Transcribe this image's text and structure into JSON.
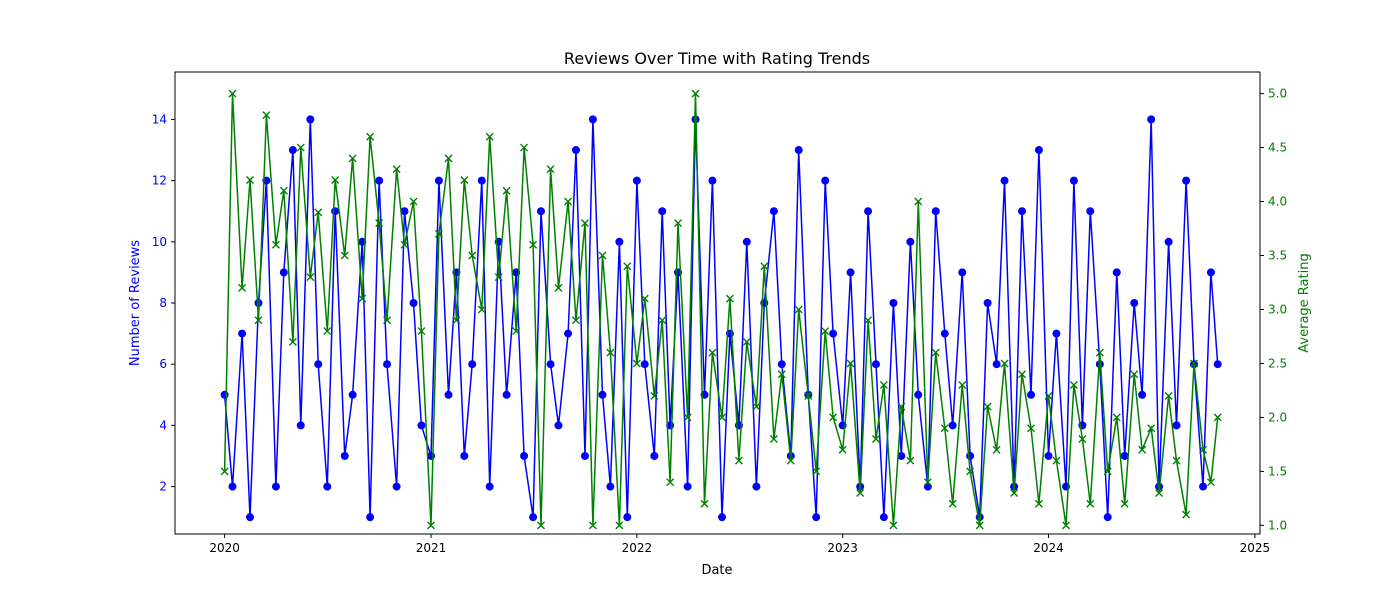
{
  "chart_data": {
    "type": "line",
    "title": "Reviews Over Time with Rating Trends",
    "xlabel": "Date",
    "xlim": [
      "2019-10-05",
      "2025-01-10"
    ],
    "xticks": [
      "2020",
      "2021",
      "2022",
      "2023",
      "2024",
      "2025"
    ],
    "x_range_of_data": [
      "2020-01-01",
      "2024-10-27"
    ],
    "y_left": {
      "label": "Number of Reviews",
      "ylim": [
        0.45,
        15.55
      ],
      "ticks": [
        "2",
        "4",
        "6",
        "8",
        "10",
        "12",
        "14"
      ],
      "color": "#0000ff"
    },
    "y_right": {
      "label": "Average Rating",
      "ylim": [
        0.92,
        5.2
      ],
      "ticks": [
        "1.0",
        "1.5",
        "2.0",
        "2.5",
        "3.0",
        "3.5",
        "4.0",
        "4.5",
        "5.0"
      ],
      "color": "#008000"
    },
    "series": [
      {
        "axis": "left",
        "marker": "circle",
        "color": "#0000ff",
        "x": [
          "2020-01-01",
          "2020-01-15",
          "2020-02-01",
          "2020-02-15",
          "2020-03-01",
          "2020-03-15",
          "2020-04-01",
          "2020-04-15",
          "2020-05-01",
          "2020-05-15",
          "2020-06-01",
          "2020-06-15",
          "2020-07-01",
          "2020-07-15",
          "2020-08-01",
          "2020-08-15",
          "2020-09-01",
          "2020-09-15",
          "2020-10-01",
          "2020-10-15",
          "2020-11-01",
          "2020-11-15",
          "2020-12-01",
          "2020-12-15",
          "2021-01-01",
          "2021-01-15",
          "2021-02-01",
          "2021-02-15",
          "2021-03-01",
          "2021-03-15",
          "2021-04-01",
          "2021-04-15",
          "2021-05-01",
          "2021-05-15",
          "2021-06-01",
          "2021-06-15",
          "2021-07-01",
          "2021-07-15",
          "2021-08-01",
          "2021-08-15",
          "2021-09-01",
          "2021-09-15",
          "2021-10-01",
          "2021-10-15",
          "2021-11-01",
          "2021-11-15",
          "2021-12-01",
          "2021-12-15",
          "2022-01-01",
          "2022-01-15",
          "2022-02-01",
          "2022-02-15",
          "2022-03-01",
          "2022-03-15",
          "2022-04-01",
          "2022-04-15",
          "2022-05-01",
          "2022-05-15",
          "2022-06-01",
          "2022-06-15",
          "2022-07-01",
          "2022-07-15",
          "2022-08-01",
          "2022-08-15",
          "2022-09-01",
          "2022-09-15",
          "2022-10-01",
          "2022-10-15",
          "2022-11-01",
          "2022-11-15",
          "2022-12-01",
          "2022-12-15",
          "2023-01-01",
          "2023-01-15",
          "2023-02-01",
          "2023-02-15",
          "2023-03-01",
          "2023-03-15",
          "2023-04-01",
          "2023-04-15",
          "2023-05-01",
          "2023-05-15",
          "2023-06-01",
          "2023-06-15",
          "2023-07-01",
          "2023-07-15",
          "2023-08-01",
          "2023-08-15",
          "2023-09-01",
          "2023-09-15",
          "2023-10-01",
          "2023-10-15",
          "2023-11-01",
          "2023-11-15",
          "2023-12-01",
          "2023-12-15",
          "2024-01-01",
          "2024-01-15",
          "2024-02-01",
          "2024-02-15",
          "2024-03-01",
          "2024-03-15",
          "2024-04-01",
          "2024-04-15",
          "2024-05-01",
          "2024-05-15",
          "2024-06-01",
          "2024-06-15",
          "2024-07-01",
          "2024-07-15",
          "2024-08-01",
          "2024-08-15",
          "2024-09-01",
          "2024-09-15",
          "2024-10-01",
          "2024-10-15",
          "2024-10-27"
        ],
        "values": [
          5,
          2,
          7,
          1,
          8,
          12,
          2,
          9,
          13,
          4,
          14,
          6,
          2,
          11,
          3,
          5,
          10,
          1,
          12,
          6,
          2,
          11,
          8,
          4,
          3,
          12,
          5,
          9,
          3,
          6,
          12,
          2,
          10,
          5,
          9,
          3,
          1,
          11,
          6,
          4,
          7,
          13,
          3,
          14,
          5,
          2,
          10,
          1,
          12,
          6,
          3,
          11,
          4,
          9,
          2,
          14,
          5,
          12,
          1,
          7,
          4,
          10,
          2,
          8,
          11,
          6,
          3,
          13,
          5,
          1,
          12,
          7,
          4,
          9,
          2,
          11,
          6,
          1,
          8,
          3,
          10,
          5,
          2,
          11,
          7,
          4,
          9,
          3,
          1,
          8,
          6,
          12,
          2,
          11,
          5,
          13,
          3,
          7,
          2,
          12,
          4,
          11,
          6,
          1,
          9,
          3,
          8,
          5,
          14,
          2,
          10,
          4,
          12,
          6,
          2,
          9,
          6
        ]
      },
      {
        "axis": "right",
        "marker": "x",
        "color": "#008000",
        "x": [
          "2020-01-01",
          "2020-01-15",
          "2020-02-01",
          "2020-02-15",
          "2020-03-01",
          "2020-03-15",
          "2020-04-01",
          "2020-04-15",
          "2020-05-01",
          "2020-05-15",
          "2020-06-01",
          "2020-06-15",
          "2020-07-01",
          "2020-07-15",
          "2020-08-01",
          "2020-08-15",
          "2020-09-01",
          "2020-09-15",
          "2020-10-01",
          "2020-10-15",
          "2020-11-01",
          "2020-11-15",
          "2020-12-01",
          "2020-12-15",
          "2021-01-01",
          "2021-01-15",
          "2021-02-01",
          "2021-02-15",
          "2021-03-01",
          "2021-03-15",
          "2021-04-01",
          "2021-04-15",
          "2021-05-01",
          "2021-05-15",
          "2021-06-01",
          "2021-06-15",
          "2021-07-01",
          "2021-07-15",
          "2021-08-01",
          "2021-08-15",
          "2021-09-01",
          "2021-09-15",
          "2021-10-01",
          "2021-10-15",
          "2021-11-01",
          "2021-11-15",
          "2021-12-01",
          "2021-12-15",
          "2022-01-01",
          "2022-01-15",
          "2022-02-01",
          "2022-02-15",
          "2022-03-01",
          "2022-03-15",
          "2022-04-01",
          "2022-04-15",
          "2022-05-01",
          "2022-05-15",
          "2022-06-01",
          "2022-06-15",
          "2022-07-01",
          "2022-07-15",
          "2022-08-01",
          "2022-08-15",
          "2022-09-01",
          "2022-09-15",
          "2022-10-01",
          "2022-10-15",
          "2022-11-01",
          "2022-11-15",
          "2022-12-01",
          "2022-12-15",
          "2023-01-01",
          "2023-01-15",
          "2023-02-01",
          "2023-02-15",
          "2023-03-01",
          "2023-03-15",
          "2023-04-01",
          "2023-04-15",
          "2023-05-01",
          "2023-05-15",
          "2023-06-01",
          "2023-06-15",
          "2023-07-01",
          "2023-07-15",
          "2023-08-01",
          "2023-08-15",
          "2023-09-01",
          "2023-09-15",
          "2023-10-01",
          "2023-10-15",
          "2023-11-01",
          "2023-11-15",
          "2023-12-01",
          "2023-12-15",
          "2024-01-01",
          "2024-01-15",
          "2024-02-01",
          "2024-02-15",
          "2024-03-01",
          "2024-03-15",
          "2024-04-01",
          "2024-04-15",
          "2024-05-01",
          "2024-05-15",
          "2024-06-01",
          "2024-06-15",
          "2024-07-01",
          "2024-07-15",
          "2024-08-01",
          "2024-08-15",
          "2024-09-01",
          "2024-09-15",
          "2024-10-01",
          "2024-10-15",
          "2024-10-27"
        ],
        "values": [
          1.5,
          5.0,
          3.2,
          4.2,
          2.9,
          4.8,
          3.6,
          4.1,
          2.7,
          4.5,
          3.3,
          3.9,
          2.8,
          4.2,
          3.5,
          4.4,
          3.1,
          4.6,
          3.8,
          2.9,
          4.3,
          3.6,
          4.0,
          2.8,
          1.0,
          3.7,
          4.4,
          2.9,
          4.2,
          3.5,
          3.0,
          4.6,
          3.3,
          4.1,
          2.8,
          4.5,
          3.6,
          1.0,
          4.3,
          3.2,
          4.0,
          2.9,
          3.8,
          1.0,
          3.5,
          2.6,
          1.0,
          3.4,
          2.5,
          3.1,
          2.2,
          2.9,
          1.4,
          3.8,
          2.0,
          5.0,
          1.2,
          2.6,
          2.0,
          3.1,
          1.6,
          2.7,
          2.1,
          3.4,
          1.8,
          2.4,
          1.6,
          3.0,
          2.2,
          1.5,
          2.8,
          2.0,
          1.7,
          2.5,
          1.3,
          2.9,
          1.8,
          2.3,
          1.0,
          2.1,
          1.6,
          4.0,
          1.4,
          2.6,
          1.9,
          1.2,
          2.3,
          1.5,
          1.0,
          2.1,
          1.7,
          2.5,
          1.3,
          2.4,
          1.9,
          1.2,
          2.2,
          1.6,
          1.0,
          2.3,
          1.8,
          1.2,
          2.6,
          1.5,
          2.0,
          1.2,
          2.4,
          1.7,
          1.9,
          1.3,
          2.2,
          1.6,
          1.1,
          2.5,
          1.7,
          1.4,
          2.0
        ]
      }
    ]
  }
}
